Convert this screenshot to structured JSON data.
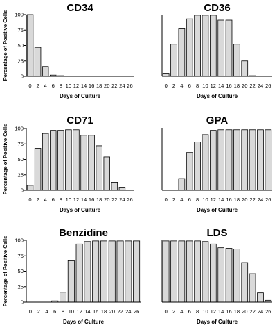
{
  "chart_data": [
    {
      "type": "bar",
      "title": "CD34",
      "xlabel": "Days of Culture",
      "ylabel": "Percentage of Positive Cells",
      "ylim": [
        0,
        100
      ],
      "yticks": [
        0,
        25,
        50,
        75,
        100
      ],
      "show_ylabel": true,
      "categories": [
        "0",
        "2",
        "4",
        "6",
        "8",
        "10",
        "12",
        "14",
        "16",
        "18",
        "20",
        "22",
        "24",
        "26"
      ],
      "values": [
        100,
        47,
        16,
        2,
        1,
        0,
        0,
        0,
        0,
        0,
        0,
        0,
        0,
        0
      ]
    },
    {
      "type": "bar",
      "title": "CD36",
      "xlabel": "Days of Culture",
      "ylabel": "",
      "ylim": [
        0,
        100
      ],
      "yticks": [],
      "show_ylabel": false,
      "categories": [
        "0",
        "2",
        "4",
        "6",
        "8",
        "10",
        "12",
        "14",
        "16",
        "18",
        "20",
        "22",
        "24",
        "26"
      ],
      "values": [
        5,
        52,
        77,
        93,
        99,
        99,
        99,
        91,
        91,
        52,
        25,
        1,
        0,
        0
      ]
    },
    {
      "type": "bar",
      "title": "CD71",
      "xlabel": "Days of Culture",
      "ylabel": "Percentage of Positive Cells",
      "ylim": [
        0,
        100
      ],
      "yticks": [
        0,
        25,
        50,
        75,
        100
      ],
      "show_ylabel": true,
      "categories": [
        "0",
        "2",
        "4",
        "6",
        "8",
        "10",
        "12",
        "14",
        "16",
        "18",
        "20",
        "22",
        "24",
        "26"
      ],
      "values": [
        8,
        68,
        92,
        97,
        97,
        98,
        98,
        89,
        89,
        72,
        54,
        13,
        5,
        0
      ]
    },
    {
      "type": "bar",
      "title": "GPA",
      "xlabel": "Days of Culture",
      "ylabel": "",
      "ylim": [
        0,
        100
      ],
      "yticks": [],
      "show_ylabel": false,
      "categories": [
        "0",
        "2",
        "4",
        "6",
        "8",
        "10",
        "12",
        "14",
        "16",
        "18",
        "20",
        "22",
        "24",
        "26"
      ],
      "values": [
        0,
        0,
        19,
        61,
        78,
        90,
        97,
        98,
        98,
        98,
        98,
        98,
        98,
        98
      ]
    },
    {
      "type": "bar",
      "title": "Benzidine",
      "xlabel": "Days of Culture",
      "ylabel": "Percentage of Positive Cells",
      "ylim": [
        0,
        100
      ],
      "yticks": [
        0,
        25,
        50,
        75,
        100
      ],
      "show_ylabel": true,
      "categories": [
        "0",
        "2",
        "4",
        "6",
        "8",
        "10",
        "12",
        "14",
        "16",
        "18",
        "20",
        "22",
        "24",
        "26"
      ],
      "values": [
        0,
        0,
        0,
        2,
        16,
        67,
        94,
        98,
        99,
        99,
        99,
        99,
        99,
        99
      ]
    },
    {
      "type": "bar",
      "title": "LDS",
      "xlabel": "Days of Culture",
      "ylabel": "",
      "ylim": [
        0,
        100
      ],
      "yticks": [],
      "show_ylabel": false,
      "categories": [
        "0",
        "2",
        "4",
        "6",
        "8",
        "10",
        "12",
        "14",
        "16",
        "18",
        "20",
        "22",
        "24",
        "26"
      ],
      "values": [
        99,
        99,
        99,
        99,
        99,
        98,
        94,
        88,
        87,
        86,
        64,
        46,
        15,
        3
      ]
    }
  ]
}
